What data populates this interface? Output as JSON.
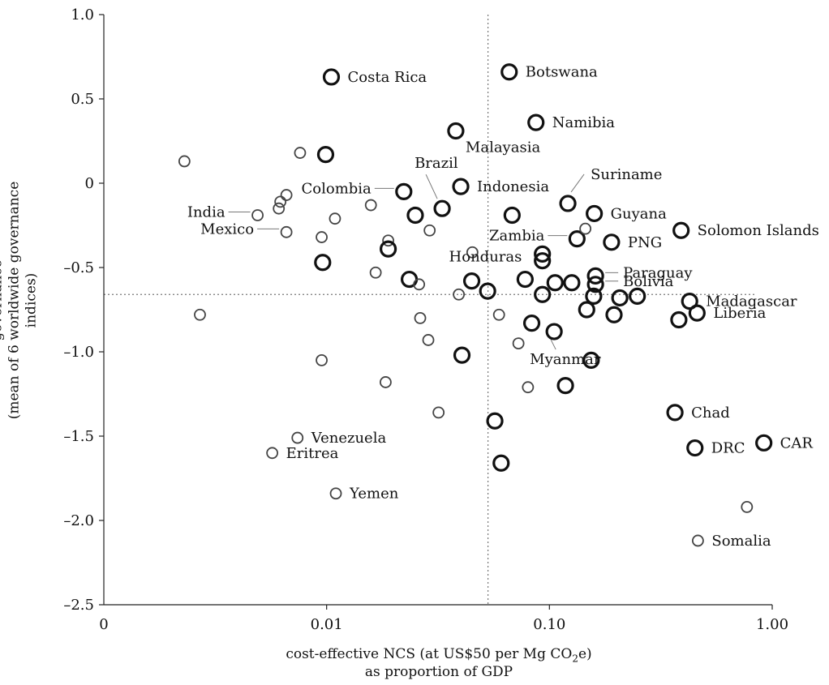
{
  "chart_data": {
    "type": "scatter",
    "xlabel_line1_parts": [
      "cost-effective NCS (at US$50 per Mg CO",
      "2",
      "e)"
    ],
    "xlabel_line2": "as proportion of GDP",
    "ylabel_line1": "governance",
    "ylabel_line2": "(mean of 6 worldwide governance indices)",
    "x_scale": "log",
    "x_axis_origin_label": "0",
    "xlim": [
      0.001,
      1.0
    ],
    "ylim": [
      -2.5,
      1.0
    ],
    "x_ticks": [
      {
        "value": 0.01,
        "label": "0.01"
      },
      {
        "value": 0.1,
        "label": "0.10"
      },
      {
        "value": 1.0,
        "label": "1.00"
      }
    ],
    "y_ticks": [
      {
        "value": 1.0,
        "label": "1.0"
      },
      {
        "value": 0.5,
        "label": "0.5"
      },
      {
        "value": 0,
        "label": "0"
      },
      {
        "value": -0.5,
        "label": "–0.5"
      },
      {
        "value": -1.0,
        "label": "–1.0"
      },
      {
        "value": -1.5,
        "label": "–1.5"
      },
      {
        "value": -2.0,
        "label": "–2.0"
      },
      {
        "value": -2.5,
        "label": "–2.5"
      }
    ],
    "reference_lines": {
      "x": 0.053,
      "y": -0.66
    },
    "grid": false,
    "legend": "none",
    "points": [
      {
        "x": 0.0105,
        "y": 0.63,
        "size": "large",
        "label": "Costa Rica",
        "label_pos": "right"
      },
      {
        "x": 0.066,
        "y": 0.66,
        "size": "large",
        "label": "Botswana",
        "label_pos": "right"
      },
      {
        "x": 0.087,
        "y": 0.36,
        "size": "large",
        "label": "Namibia",
        "label_pos": "right"
      },
      {
        "x": 0.038,
        "y": 0.31,
        "size": "large",
        "label": "Malayasia",
        "label_pos": "below-right"
      },
      {
        "x": 0.0099,
        "y": 0.17,
        "size": "large"
      },
      {
        "x": 0.0076,
        "y": 0.18,
        "size": "small"
      },
      {
        "x": 0.0023,
        "y": 0.13,
        "size": "small"
      },
      {
        "x": 0.04,
        "y": -0.02,
        "size": "large",
        "label": "Indonesia",
        "label_pos": "right"
      },
      {
        "x": 0.0222,
        "y": -0.05,
        "size": "large",
        "label": "Colombia",
        "label_pos": "left-leader"
      },
      {
        "x": 0.025,
        "y": -0.19,
        "size": "large"
      },
      {
        "x": 0.033,
        "y": -0.15,
        "size": "large",
        "label": "Brazil",
        "label_pos": "above-leader"
      },
      {
        "x": 0.068,
        "y": -0.19,
        "size": "large"
      },
      {
        "x": 0.121,
        "y": -0.12,
        "size": "large",
        "label": "Suriname",
        "label_pos": "above-right-leader"
      },
      {
        "x": 0.159,
        "y": -0.18,
        "size": "large",
        "label": "Guyana",
        "label_pos": "right"
      },
      {
        "x": 0.39,
        "y": -0.28,
        "size": "large",
        "label": "Solomon Islands",
        "label_pos": "right"
      },
      {
        "x": 0.133,
        "y": -0.33,
        "size": "large",
        "label": "Zambia",
        "label_pos": "left-leader"
      },
      {
        "x": 0.145,
        "y": -0.27,
        "size": "small"
      },
      {
        "x": 0.19,
        "y": -0.35,
        "size": "large",
        "label": "PNG",
        "label_pos": "right"
      },
      {
        "x": 0.093,
        "y": -0.42,
        "size": "large"
      },
      {
        "x": 0.093,
        "y": -0.46,
        "size": "large"
      },
      {
        "x": 0.161,
        "y": -0.55,
        "size": "large",
        "label": "Paraguay",
        "label_pos": "right-leader"
      },
      {
        "x": 0.161,
        "y": -0.6,
        "size": "large",
        "label": "Bolivia",
        "label_pos": "right-leader"
      },
      {
        "x": 0.0049,
        "y": -0.19,
        "size": "small",
        "label": "India",
        "label_pos": "left-leader"
      },
      {
        "x": 0.0062,
        "y": -0.11,
        "size": "small"
      },
      {
        "x": 0.0066,
        "y": -0.07,
        "size": "small"
      },
      {
        "x": 0.0061,
        "y": -0.15,
        "size": "small"
      },
      {
        "x": 0.0066,
        "y": -0.29,
        "size": "small",
        "label": "Mexico",
        "label_pos": "left-leader"
      },
      {
        "x": 0.0109,
        "y": -0.21,
        "size": "small"
      },
      {
        "x": 0.0158,
        "y": -0.13,
        "size": "small"
      },
      {
        "x": 0.0095,
        "y": -0.32,
        "size": "small"
      },
      {
        "x": 0.0189,
        "y": -0.34,
        "size": "small"
      },
      {
        "x": 0.029,
        "y": -0.28,
        "size": "small"
      },
      {
        "x": 0.0189,
        "y": -0.39,
        "size": "large"
      },
      {
        "x": 0.0096,
        "y": -0.47,
        "size": "large"
      },
      {
        "x": 0.0166,
        "y": -0.53,
        "size": "small"
      },
      {
        "x": 0.0235,
        "y": -0.57,
        "size": "large"
      },
      {
        "x": 0.026,
        "y": -0.6,
        "size": "small"
      },
      {
        "x": 0.0448,
        "y": -0.58,
        "size": "large",
        "label": "Honduras",
        "label_pos": "above-right"
      },
      {
        "x": 0.0451,
        "y": -0.41,
        "size": "small"
      },
      {
        "x": 0.0528,
        "y": -0.64,
        "size": "large"
      },
      {
        "x": 0.0392,
        "y": -0.66,
        "size": "small"
      },
      {
        "x": 0.0778,
        "y": -0.57,
        "size": "large"
      },
      {
        "x": 0.106,
        "y": -0.59,
        "size": "large"
      },
      {
        "x": 0.126,
        "y": -0.59,
        "size": "large"
      },
      {
        "x": 0.093,
        "y": -0.66,
        "size": "large"
      },
      {
        "x": 0.158,
        "y": -0.67,
        "size": "large"
      },
      {
        "x": 0.207,
        "y": -0.68,
        "size": "large"
      },
      {
        "x": 0.248,
        "y": -0.67,
        "size": "large"
      },
      {
        "x": 0.426,
        "y": -0.7,
        "size": "large",
        "label": "Madagascar",
        "label_pos": "right"
      },
      {
        "x": 0.46,
        "y": -0.77,
        "size": "large",
        "label": "Liberia",
        "label_pos": "right"
      },
      {
        "x": 0.147,
        "y": -0.75,
        "size": "large"
      },
      {
        "x": 0.195,
        "y": -0.78,
        "size": "large"
      },
      {
        "x": 0.381,
        "y": -0.81,
        "size": "large"
      },
      {
        "x": 0.0027,
        "y": -0.78,
        "size": "small"
      },
      {
        "x": 0.0263,
        "y": -0.8,
        "size": "small"
      },
      {
        "x": 0.0594,
        "y": -0.78,
        "size": "small"
      },
      {
        "x": 0.0833,
        "y": -0.83,
        "size": "large"
      },
      {
        "x": 0.105,
        "y": -0.88,
        "size": "large",
        "label": "Myanmar",
        "label_pos": "below-left"
      },
      {
        "x": 0.0286,
        "y": -0.93,
        "size": "small"
      },
      {
        "x": 0.0726,
        "y": -0.95,
        "size": "small"
      },
      {
        "x": 0.0405,
        "y": -1.02,
        "size": "large"
      },
      {
        "x": 0.0095,
        "y": -1.05,
        "size": "small"
      },
      {
        "x": 0.154,
        "y": -1.05,
        "size": "large"
      },
      {
        "x": 0.0184,
        "y": -1.18,
        "size": "small"
      },
      {
        "x": 0.0801,
        "y": -1.21,
        "size": "small"
      },
      {
        "x": 0.118,
        "y": -1.2,
        "size": "large"
      },
      {
        "x": 0.0318,
        "y": -1.36,
        "size": "small"
      },
      {
        "x": 0.0569,
        "y": -1.41,
        "size": "large"
      },
      {
        "x": 0.366,
        "y": -1.36,
        "size": "large",
        "label": "Chad",
        "label_pos": "right"
      },
      {
        "x": 0.45,
        "y": -1.57,
        "size": "large",
        "label": "DRC",
        "label_pos": "right"
      },
      {
        "x": 0.917,
        "y": -1.54,
        "size": "large",
        "label": "CAR",
        "label_pos": "right"
      },
      {
        "x": 0.0074,
        "y": -1.51,
        "size": "small",
        "label": "Venezuela",
        "label_pos": "right"
      },
      {
        "x": 0.0057,
        "y": -1.6,
        "size": "small",
        "label": "Eritrea",
        "label_pos": "right"
      },
      {
        "x": 0.0607,
        "y": -1.66,
        "size": "large"
      },
      {
        "x": 0.011,
        "y": -1.84,
        "size": "small",
        "label": "Yemen",
        "label_pos": "right"
      },
      {
        "x": 0.77,
        "y": -1.92,
        "size": "small"
      },
      {
        "x": 0.464,
        "y": -2.12,
        "size": "small",
        "label": "Somalia",
        "label_pos": "right"
      }
    ]
  }
}
